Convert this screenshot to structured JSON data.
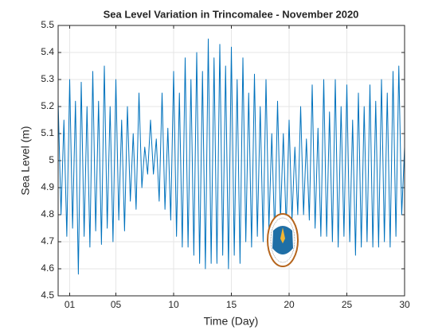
{
  "chart_data": {
    "type": "line",
    "title": "Sea Level Variation in Trincomalee - November 2020",
    "xlabel": "Time (Day)",
    "ylabel": "Sea Level (m)",
    "color": "#0072bd",
    "grid": true,
    "xlim": [
      0,
      30
    ],
    "ylim": [
      4.5,
      5.5
    ],
    "xticks": [
      {
        "value": 1,
        "label": "01"
      },
      {
        "value": 5,
        "label": "05"
      },
      10,
      15,
      20,
      25,
      30
    ],
    "yticks": [
      4.5,
      4.6,
      4.7,
      4.8,
      4.9,
      5,
      5.1,
      5.2,
      5.3,
      5.4,
      5.5
    ],
    "x": [
      0,
      0.25,
      0.5,
      0.75,
      1,
      1.25,
      1.5,
      1.75,
      2,
      2.25,
      2.5,
      2.75,
      3,
      3.25,
      3.5,
      3.75,
      4,
      4.25,
      4.5,
      4.75,
      5,
      5.25,
      5.5,
      5.75,
      6,
      6.25,
      6.5,
      6.75,
      7,
      7.25,
      7.5,
      7.75,
      8,
      8.25,
      8.5,
      8.75,
      9,
      9.25,
      9.5,
      9.75,
      10,
      10.25,
      10.5,
      10.75,
      11,
      11.25,
      11.5,
      11.75,
      12,
      12.25,
      12.5,
      12.75,
      13,
      13.25,
      13.5,
      13.75,
      14,
      14.25,
      14.5,
      14.75,
      15,
      15.25,
      15.5,
      15.75,
      16,
      16.25,
      16.5,
      16.75,
      17,
      17.25,
      17.5,
      17.75,
      18,
      18.25,
      18.5,
      18.75,
      19,
      19.25,
      19.5,
      19.75,
      20,
      20.25,
      20.5,
      20.75,
      21,
      21.25,
      21.5,
      21.75,
      22,
      22.25,
      22.5,
      22.75,
      23,
      23.25,
      23.5,
      23.75,
      24,
      24.25,
      24.5,
      24.75,
      25,
      25.25,
      25.5,
      25.75,
      26,
      26.25,
      26.5,
      26.75,
      27,
      27.25,
      27.5,
      27.75,
      28,
      28.25,
      28.5,
      28.75,
      29,
      29.25,
      29.5,
      29.75,
      30
    ],
    "values": [
      5.22,
      4.8,
      5.15,
      4.72,
      5.3,
      4.75,
      5.22,
      4.58,
      5.29,
      4.72,
      5.2,
      4.68,
      5.33,
      4.74,
      5.22,
      4.69,
      5.35,
      4.75,
      5.2,
      4.7,
      5.3,
      4.78,
      5.15,
      4.74,
      5.2,
      4.85,
      5.1,
      4.82,
      5.25,
      4.9,
      5.05,
      4.95,
      5.15,
      4.95,
      5.08,
      4.85,
      5.25,
      4.82,
      5.12,
      4.78,
      5.33,
      4.72,
      5.25,
      4.68,
      5.38,
      4.68,
      5.3,
      4.65,
      5.4,
      4.62,
      5.33,
      4.6,
      5.45,
      4.62,
      5.38,
      4.62,
      5.43,
      4.65,
      5.35,
      4.6,
      5.42,
      4.65,
      5.3,
      4.62,
      5.38,
      4.7,
      5.25,
      4.68,
      5.32,
      4.72,
      5.2,
      4.7,
      5.3,
      4.75,
      5.1,
      4.72,
      5.22,
      4.78,
      5.1,
      4.75,
      5.15,
      4.78,
      5.05,
      4.8,
      5.2,
      4.8,
      5.08,
      4.78,
      5.28,
      4.75,
      5.12,
      4.72,
      5.3,
      4.72,
      5.18,
      4.7,
      5.3,
      4.68,
      5.2,
      4.72,
      5.28,
      4.7,
      5.15,
      4.65,
      5.25,
      4.68,
      5.2,
      4.7,
      5.28,
      4.68,
      5.22,
      4.68,
      5.3,
      4.7,
      5.25,
      4.68,
      5.33,
      4.72,
      5.35,
      4.8,
      5.05
    ]
  }
}
